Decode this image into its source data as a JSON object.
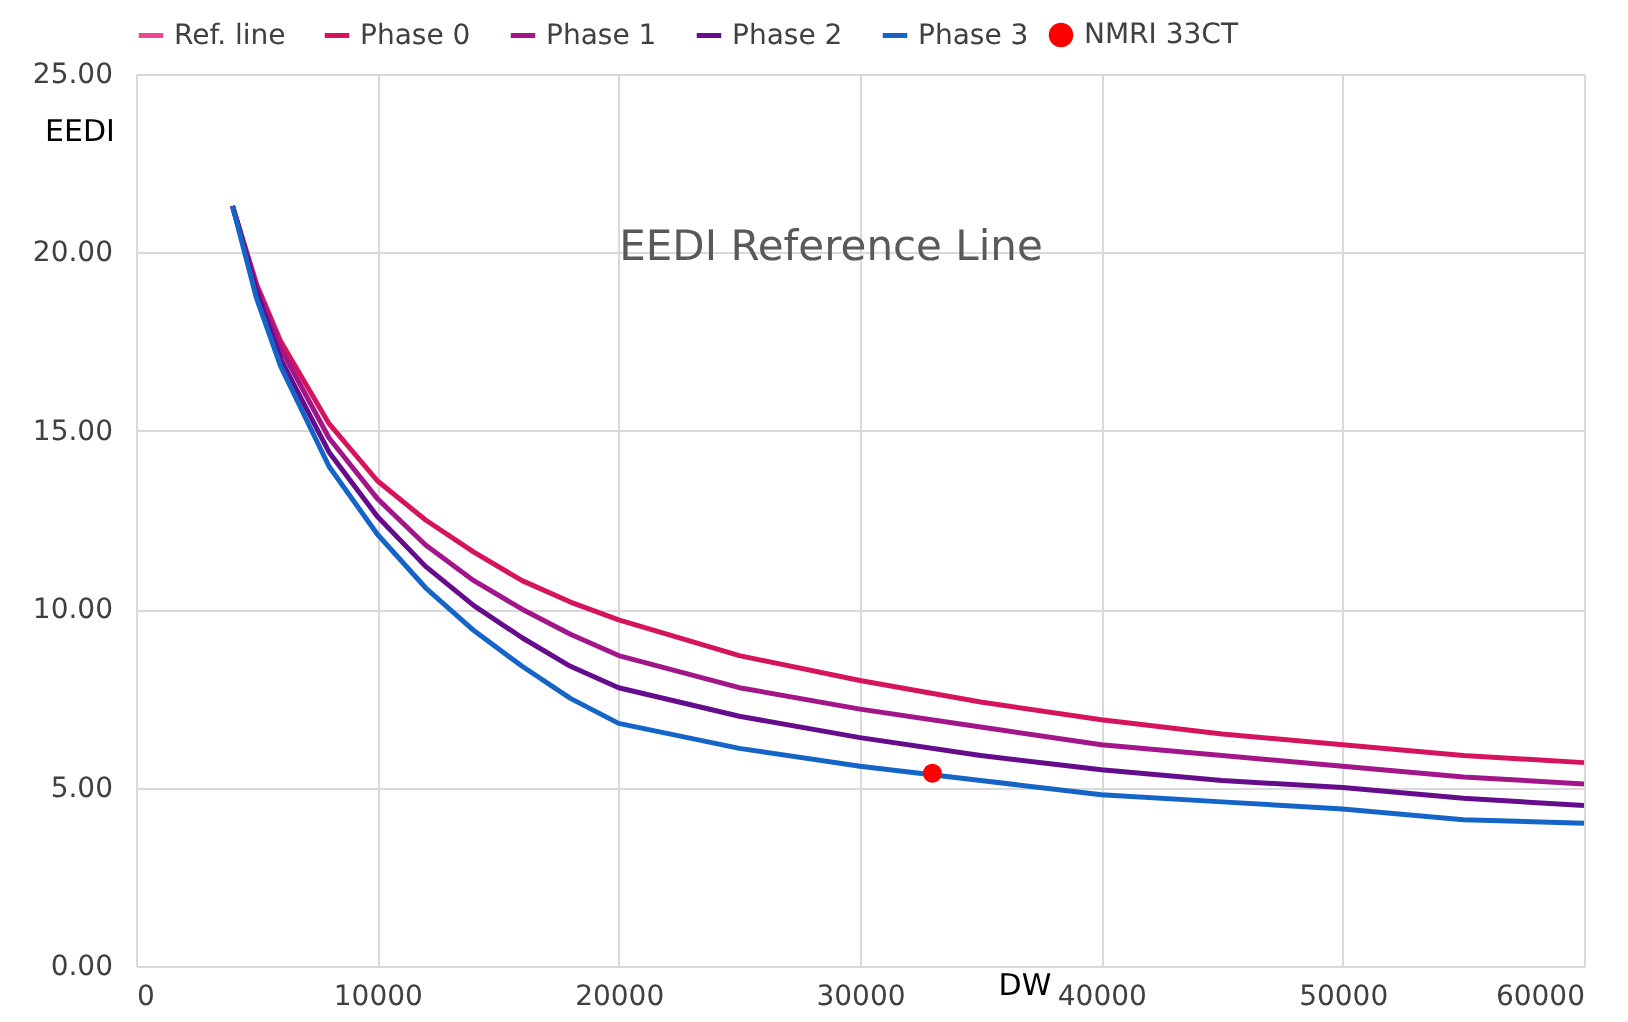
{
  "chart_data": {
    "type": "line",
    "title": "EEDI Reference Line",
    "xlabel": "DW",
    "ylabel": "EEDI",
    "x": [
      4000,
      5000,
      6000,
      8000,
      10000,
      12000,
      14000,
      16000,
      18000,
      20000,
      25000,
      30000,
      35000,
      40000,
      45000,
      50000,
      55000,
      60000
    ],
    "series": [
      {
        "name": "Ref. line",
        "color": "#ec4b94",
        "values": [
          null,
          null,
          null,
          null,
          null,
          null,
          null,
          null,
          null,
          null,
          null,
          null,
          null,
          null,
          null,
          null,
          null,
          null
        ]
      },
      {
        "name": "Phase 0",
        "color": "#d6145e",
        "values": [
          21.3,
          19.1,
          17.5,
          15.2,
          13.6,
          12.5,
          11.6,
          10.8,
          10.2,
          9.7,
          8.7,
          8.0,
          7.4,
          6.9,
          6.5,
          6.2,
          5.9,
          5.7
        ]
      },
      {
        "name": "Phase 1",
        "color": "#a3168a",
        "values": [
          21.3,
          19.0,
          17.3,
          14.8,
          13.1,
          11.8,
          10.8,
          10.0,
          9.3,
          8.7,
          7.8,
          7.2,
          6.7,
          6.2,
          5.9,
          5.6,
          5.3,
          5.1
        ]
      },
      {
        "name": "Phase 2",
        "color": "#650c8c",
        "values": [
          21.3,
          18.9,
          17.0,
          14.4,
          12.6,
          11.2,
          10.1,
          9.2,
          8.4,
          7.8,
          7.0,
          6.4,
          5.9,
          5.5,
          5.2,
          5.0,
          4.7,
          4.5
        ]
      },
      {
        "name": "Phase 3",
        "color": "#1565c8",
        "values": [
          21.3,
          18.7,
          16.8,
          14.0,
          12.1,
          10.6,
          9.4,
          8.4,
          7.5,
          6.8,
          6.1,
          5.6,
          5.2,
          4.8,
          4.6,
          4.4,
          4.1,
          4.0
        ]
      },
      {
        "name": "NMRI 33CT",
        "type": "scatter",
        "marker": "circle",
        "color": "#ff0000",
        "x": [
          33000
        ],
        "values": [
          5.4
        ]
      }
    ],
    "xlim": [
      0,
      60000
    ],
    "xticks": [
      0,
      10000,
      20000,
      30000,
      40000,
      50000,
      60000
    ],
    "ylim": [
      0,
      25
    ],
    "yticks": [
      {
        "value": 0,
        "label": "0.00"
      },
      {
        "value": 5,
        "label": "5.00"
      },
      {
        "value": 10,
        "label": "10.00"
      },
      {
        "value": 15,
        "label": "15.00"
      },
      {
        "value": 20,
        "label": "20.00"
      },
      {
        "value": 25,
        "label": "25.00"
      }
    ],
    "grid": true,
    "legend": "top",
    "line_style": "solid"
  }
}
